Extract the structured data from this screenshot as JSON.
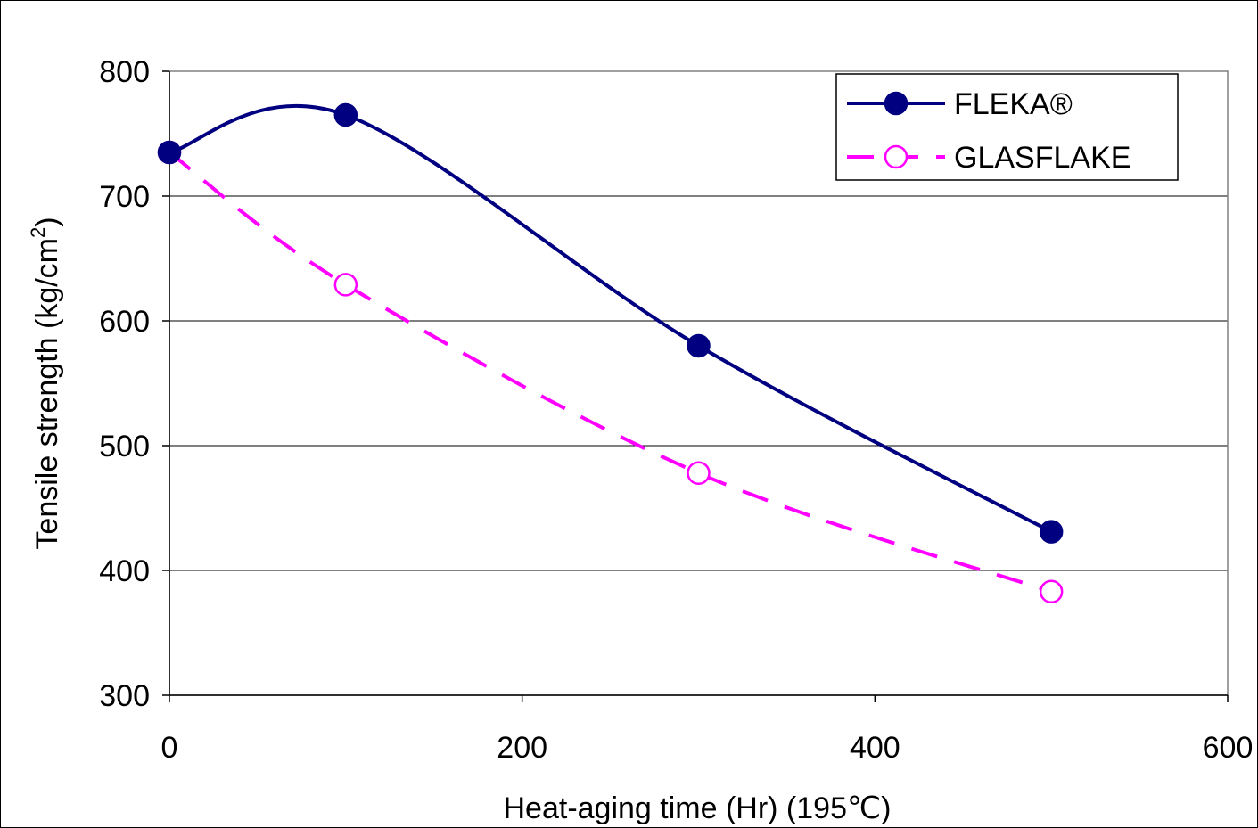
{
  "chart_data": {
    "type": "line",
    "title": "",
    "xlabel": "Heat-aging time (Hr) (195℃)",
    "ylabel": "Tensile strength (kg/cm",
    "ylabel_sup": "2",
    "ylabel_close": ")",
    "xlim": [
      0,
      600
    ],
    "ylim": [
      300,
      800
    ],
    "x_ticks": [
      0,
      200,
      400,
      600
    ],
    "y_ticks": [
      300,
      400,
      500,
      600,
      700,
      800
    ],
    "grid": "horizontal",
    "legend_position": "top-right",
    "series": [
      {
        "name": "FLEKA®",
        "color": "#000080",
        "line_style": "solid",
        "marker": "filled-circle",
        "smooth": true,
        "x": [
          0,
          100,
          300,
          500
        ],
        "y": [
          735,
          765,
          580,
          431
        ]
      },
      {
        "name": "GLASFLAKE",
        "color": "#ff00ff",
        "line_style": "dashed",
        "marker": "open-circle",
        "smooth": true,
        "x": [
          0,
          100,
          300,
          500
        ],
        "y": [
          735,
          629,
          478,
          383
        ]
      }
    ]
  }
}
